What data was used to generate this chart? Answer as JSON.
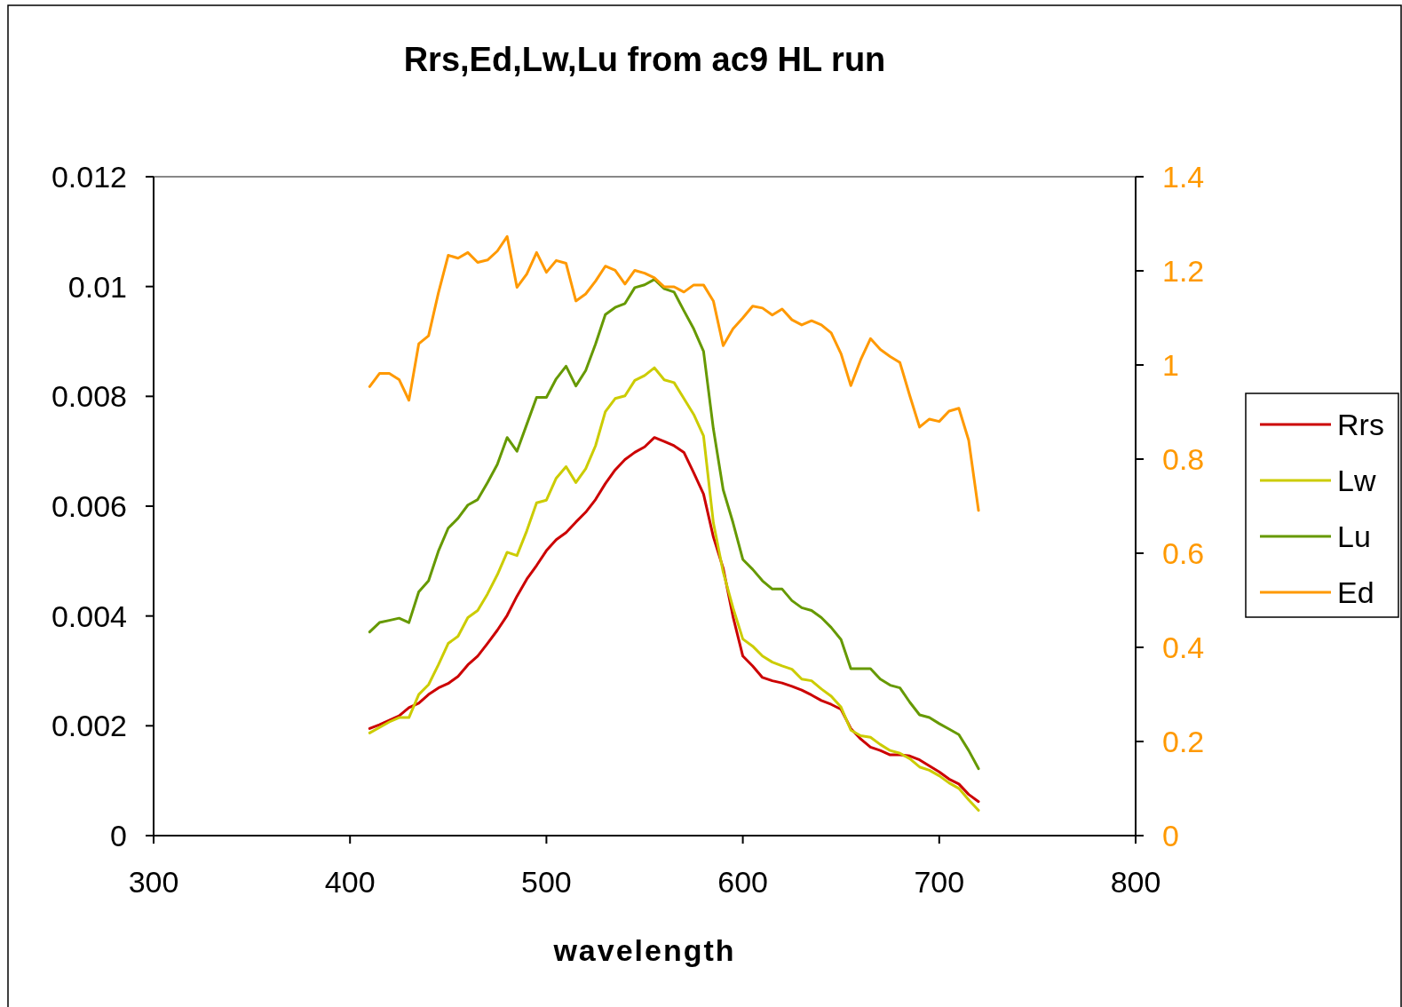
{
  "chart_data": {
    "type": "line",
    "title": "Rrs,Ed,Lw,Lu from ac9 HL run",
    "xlabel": "wavelength",
    "x": [
      410,
      415,
      420,
      425,
      430,
      435,
      440,
      445,
      450,
      455,
      460,
      465,
      470,
      475,
      480,
      485,
      490,
      495,
      500,
      505,
      510,
      515,
      520,
      525,
      530,
      535,
      540,
      545,
      550,
      555,
      560,
      565,
      570,
      575,
      580,
      585,
      590,
      595,
      600,
      605,
      610,
      615,
      620,
      625,
      630,
      635,
      640,
      645,
      650,
      655,
      660,
      665,
      670,
      675,
      680,
      685,
      690,
      695,
      700,
      705,
      710,
      715,
      720
    ],
    "xlim": [
      300,
      800
    ],
    "xticks": [
      300,
      400,
      500,
      600,
      700,
      800
    ],
    "ylim": [
      0,
      0.012
    ],
    "yticks": [
      0,
      0.002,
      0.004,
      0.006,
      0.008,
      0.01,
      0.012
    ],
    "y2lim": [
      0,
      1.4
    ],
    "y2ticks": [
      0,
      0.2,
      0.4,
      0.6,
      0.8,
      1,
      1.2,
      1.4
    ],
    "grid": false,
    "legend": "right",
    "marker": "none",
    "line_style": "solid",
    "series": [
      {
        "name": "Rrs",
        "color": "#cc0000",
        "values": [
          0.00195,
          0.00202,
          0.0021,
          0.00218,
          0.00233,
          0.00241,
          0.00257,
          0.00269,
          0.00277,
          0.0029,
          0.00311,
          0.00327,
          0.0035,
          0.00374,
          0.00401,
          0.00436,
          0.00467,
          0.00492,
          0.00519,
          0.00539,
          0.00552,
          0.00571,
          0.00589,
          0.00612,
          0.00641,
          0.00666,
          0.00685,
          0.00698,
          0.00708,
          0.00725,
          0.00718,
          0.0071,
          0.00698,
          0.00661,
          0.00622,
          0.00544,
          0.00487,
          0.00399,
          0.00327,
          0.00309,
          0.00288,
          0.00282,
          0.00278,
          0.00272,
          0.00265,
          0.00256,
          0.00246,
          0.00239,
          0.0023,
          0.00195,
          0.00176,
          0.00161,
          0.00155,
          0.00147,
          0.00147,
          0.00145,
          0.00138,
          0.00127,
          0.00116,
          0.00103,
          0.00094,
          0.00075,
          0.00062
        ]
      },
      {
        "name": "Lw",
        "color": "#cccc00",
        "values": [
          0.00187,
          0.00197,
          0.00207,
          0.00215,
          0.00215,
          0.00257,
          0.00275,
          0.00311,
          0.0035,
          0.00363,
          0.00397,
          0.0041,
          0.0044,
          0.00475,
          0.00516,
          0.0051,
          0.00555,
          0.00606,
          0.00611,
          0.00651,
          0.00672,
          0.00643,
          0.00668,
          0.0071,
          0.00772,
          0.00796,
          0.00801,
          0.00829,
          0.00838,
          0.00852,
          0.0083,
          0.00825,
          0.00796,
          0.00767,
          0.00728,
          0.0057,
          0.0048,
          0.00415,
          0.00358,
          0.00345,
          0.00327,
          0.00316,
          0.00309,
          0.00303,
          0.00285,
          0.00282,
          0.00267,
          0.00254,
          0.00234,
          0.00192,
          0.00182,
          0.00179,
          0.00166,
          0.00155,
          0.0015,
          0.0014,
          0.00125,
          0.00119,
          0.00109,
          0.00096,
          0.00086,
          0.00065,
          0.00046
        ]
      },
      {
        "name": "Lu",
        "color": "#669900",
        "values": [
          0.00371,
          0.00388,
          0.00392,
          0.00396,
          0.00388,
          0.00444,
          0.00464,
          0.00518,
          0.0056,
          0.00578,
          0.00602,
          0.00612,
          0.00643,
          0.00676,
          0.00725,
          0.007,
          0.00749,
          0.00798,
          0.00798,
          0.00832,
          0.00855,
          0.00819,
          0.00847,
          0.00895,
          0.00949,
          0.00962,
          0.00969,
          0.00998,
          0.01003,
          0.01013,
          0.00996,
          0.0099,
          0.00956,
          0.00923,
          0.00882,
          0.00741,
          0.0063,
          0.0057,
          0.00503,
          0.00485,
          0.00464,
          0.00449,
          0.00449,
          0.00428,
          0.00415,
          0.0041,
          0.00397,
          0.00379,
          0.00357,
          0.00304,
          0.00304,
          0.00304,
          0.00285,
          0.00274,
          0.00269,
          0.00243,
          0.0022,
          0.00215,
          0.00204,
          0.00194,
          0.00184,
          0.00155,
          0.00122
        ]
      },
      {
        "name": "Ed",
        "color": "#ff9900",
        "axis": "y2",
        "values": [
          0.954,
          0.982,
          0.982,
          0.969,
          0.925,
          1.045,
          1.062,
          1.153,
          1.233,
          1.227,
          1.239,
          1.218,
          1.223,
          1.242,
          1.273,
          1.165,
          1.193,
          1.239,
          1.197,
          1.222,
          1.216,
          1.136,
          1.151,
          1.178,
          1.21,
          1.201,
          1.172,
          1.201,
          1.195,
          1.185,
          1.166,
          1.166,
          1.155,
          1.17,
          1.17,
          1.136,
          1.041,
          1.077,
          1.1,
          1.125,
          1.121,
          1.106,
          1.119,
          1.096,
          1.085,
          1.094,
          1.085,
          1.068,
          1.024,
          0.956,
          1.011,
          1.056,
          1.033,
          1.018,
          1.005,
          0.935,
          0.868,
          0.885,
          0.88,
          0.902,
          0.908,
          0.84,
          0.691
        ]
      }
    ]
  }
}
